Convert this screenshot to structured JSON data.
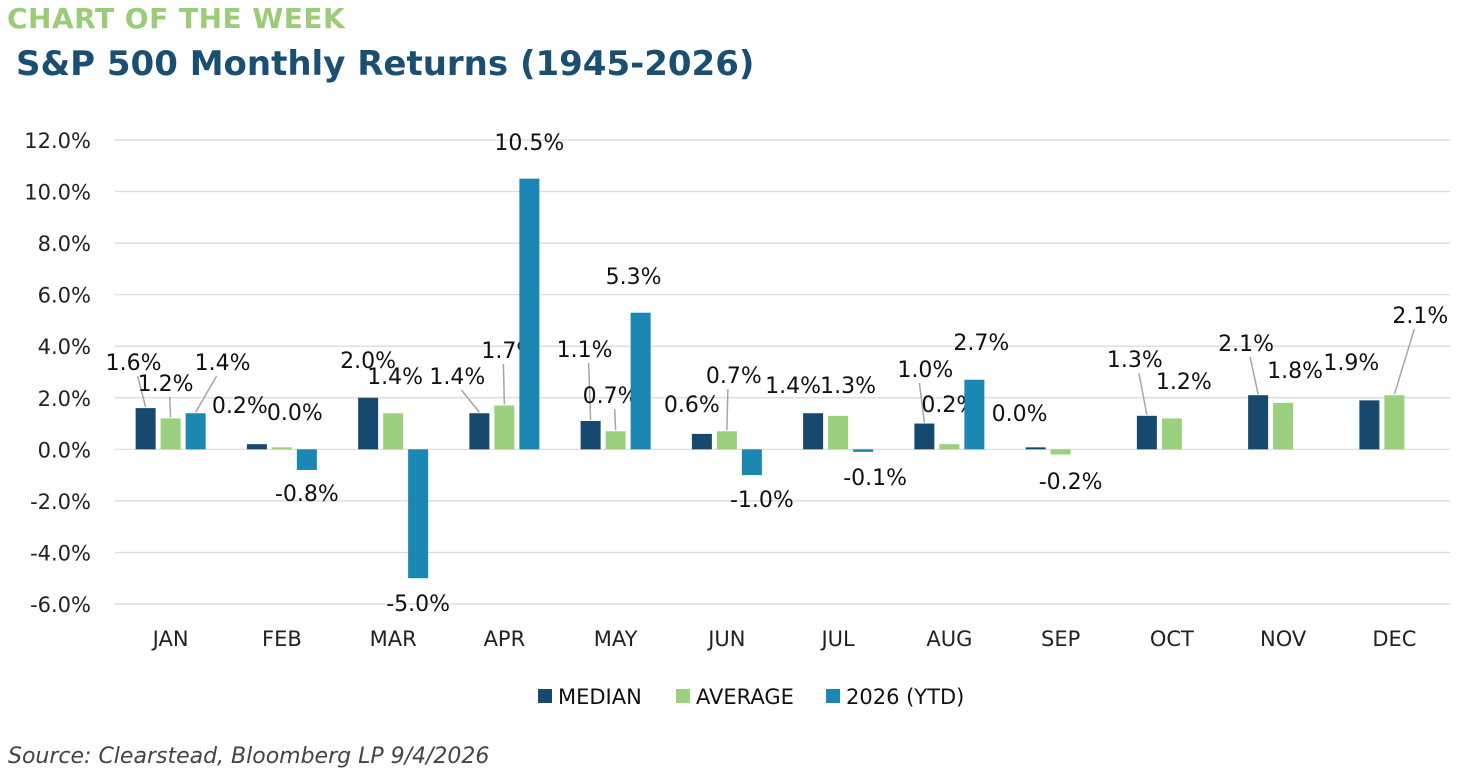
{
  "header": {
    "kicker": "CHART OF THE WEEK",
    "title": "S&P 500 Monthly Returns (1945-2026)"
  },
  "source": "Source: Clearstead, Bloomberg LP 9/4/2026",
  "colors": {
    "kicker": "#9ccc78",
    "title": "#1b4f72",
    "median": "#17486e",
    "average": "#9bd07f",
    "ytd": "#1a88b3",
    "grid": "#d9d9d9",
    "leader": "#a6a6a6"
  },
  "chart_data": {
    "type": "bar",
    "title": "S&P 500 Monthly Returns (1945-2026)",
    "categories": [
      "JAN",
      "FEB",
      "MAR",
      "APR",
      "MAY",
      "JUN",
      "JUL",
      "AUG",
      "SEP",
      "OCT",
      "NOV",
      "DEC"
    ],
    "series": [
      {
        "name": "MEDIAN",
        "values": [
          1.6,
          0.2,
          2.0,
          1.4,
          1.1,
          0.6,
          1.4,
          1.0,
          0.0,
          1.3,
          2.1,
          1.9
        ]
      },
      {
        "name": "AVERAGE",
        "values": [
          1.2,
          0.0,
          1.4,
          1.7,
          0.7,
          0.7,
          1.3,
          0.2,
          -0.2,
          1.2,
          1.8,
          2.1
        ]
      },
      {
        "name": "2026 (YTD)",
        "values": [
          1.4,
          -0.8,
          -5.0,
          10.5,
          5.3,
          -1.0,
          -0.1,
          2.7,
          null,
          null,
          null,
          null
        ]
      }
    ],
    "value_format": "percent_1dp",
    "y_ticks": [
      "12.0%",
      "10.0%",
      "8.0%",
      "6.0%",
      "4.0%",
      "2.0%",
      "0.0%",
      "-2.0%",
      "-4.0%",
      "-6.0%"
    ],
    "ylim": [
      -6,
      12
    ],
    "xlabel": "",
    "ylabel": "",
    "grid": true,
    "legend": "bottom"
  }
}
